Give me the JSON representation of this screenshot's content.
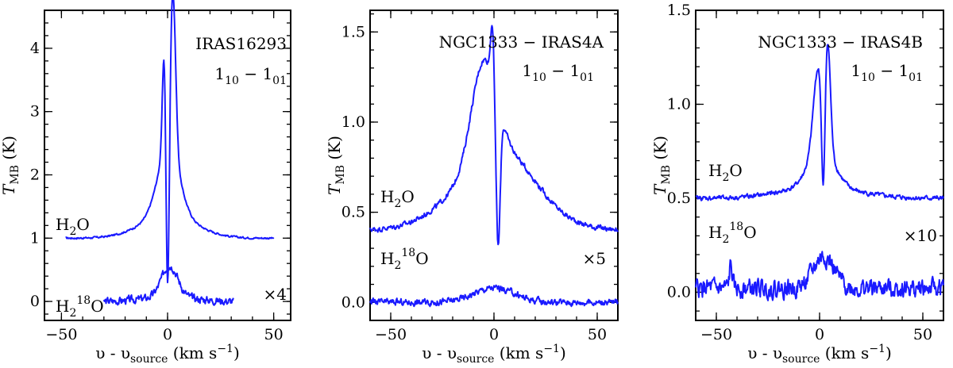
{
  "chart_data": [
    {
      "type": "line",
      "title": "IRAS16293",
      "transition": "1₁₀ − 1₀₁",
      "xlabel": "υ - υsource (km s⁻¹)",
      "ylabel": "TMB (K)",
      "xlim": [
        -58,
        58
      ],
      "ylim": [
        -0.3,
        4.6
      ],
      "xticks": [
        -50,
        0,
        50
      ],
      "yticks": [
        0,
        1,
        2,
        3,
        4
      ],
      "xtick_labels": [
        "−50",
        "0",
        "50"
      ],
      "ytick_labels": [
        "0",
        "1",
        "2",
        "3",
        "4"
      ],
      "scale_label": "×4",
      "series": [
        {
          "name": "H₂O",
          "baseline": 1.0,
          "xrange": [
            -48,
            50
          ],
          "noise": 0.012,
          "features": [
            {
              "x": -1.5,
              "amp": 1.8,
              "w": 0.9
            },
            {
              "x": 2.5,
              "amp": 2.55,
              "w": 1.3
            },
            {
              "x": 0.5,
              "amp": 1.1,
              "w": 5.0
            },
            {
              "x": 0.5,
              "amp": 0.35,
              "w": 13.0
            },
            {
              "x": 0.0,
              "amp": -3.0,
              "w": 0.8
            }
          ],
          "absorption_floor": 0.0
        },
        {
          "name": "H₂¹⁸O",
          "baseline": 0.0,
          "xrange": [
            -30,
            31
          ],
          "noise": 0.05,
          "features": [
            {
              "x": 1.0,
              "amp": 0.5,
              "w": 3.8
            },
            {
              "x": 1.0,
              "amp": 0.07,
              "w": 12.0
            }
          ]
        }
      ]
    },
    {
      "type": "line",
      "title": "NGC1333 − IRAS4A",
      "transition": "1₁₀ − 1₀₁",
      "xlabel": "υ - υsource (km s⁻¹)",
      "ylabel": "TMB (K)",
      "xlim": [
        -60,
        60
      ],
      "ylim": [
        -0.1,
        1.62
      ],
      "xticks": [
        -50,
        0,
        50
      ],
      "yticks": [
        0.0,
        0.5,
        1.0,
        1.5
      ],
      "xtick_labels": [
        "−50",
        "0",
        "50"
      ],
      "ytick_labels": [
        "0.0",
        "0.5",
        "1.0",
        "1.5"
      ],
      "scale_label": "×5",
      "series": [
        {
          "name": "H₂O",
          "baseline": 0.4,
          "xrange": [
            -60,
            60
          ],
          "noise": 0.012,
          "features": [
            {
              "x": -5.0,
              "amp": 0.55,
              "w": 6.0
            },
            {
              "x": 0.0,
              "amp": 0.35,
              "w": 20.0
            },
            {
              "x": -0.8,
              "amp": 0.3,
              "w": 0.8
            },
            {
              "x": 8.0,
              "amp": 0.1,
              "w": 12.0
            },
            {
              "x": 2.0,
              "amp": -0.8,
              "w": 1.0
            }
          ]
        },
        {
          "name": "H₂¹⁸O",
          "baseline": 0.0,
          "xrange": [
            -60,
            60
          ],
          "noise": 0.015,
          "features": [
            {
              "x": 0.0,
              "amp": 0.08,
              "w": 10.0
            }
          ]
        }
      ]
    },
    {
      "type": "line",
      "title": "NGC1333 − IRAS4B",
      "transition": "1₁₀ − 1₀₁",
      "xlabel": "υ - υsource (km s⁻¹)",
      "ylabel": "TMB (K)",
      "xlim": [
        -60,
        60
      ],
      "ylim": [
        -0.15,
        1.5
      ],
      "xticks": [
        -50,
        0,
        50
      ],
      "yticks": [
        0.0,
        0.5,
        1.0,
        1.5
      ],
      "xtick_labels": [
        "−50",
        "0",
        "50"
      ],
      "ytick_labels": [
        "0.0",
        "0.5",
        "1.0",
        "1.5"
      ],
      "scale_label": "×10",
      "series": [
        {
          "name": "H₂O",
          "baseline": 0.5,
          "xrange": [
            -60,
            60
          ],
          "noise": 0.01,
          "features": [
            {
              "x": -0.8,
              "amp": 0.42,
              "w": 2.2
            },
            {
              "x": 4.0,
              "amp": 0.55,
              "w": 1.3
            },
            {
              "x": 1.0,
              "amp": 0.22,
              "w": 6.0
            },
            {
              "x": 0.0,
              "amp": 0.06,
              "w": 18.0
            },
            {
              "x": 1.8,
              "amp": -0.55,
              "w": 0.8
            }
          ]
        },
        {
          "name": "H₂¹⁸O",
          "baseline": 0.02,
          "xrange": [
            -60,
            60
          ],
          "noise": 0.04,
          "features": [
            {
              "x": 2.0,
              "amp": 0.17,
              "w": 5.0
            },
            {
              "x": -43.0,
              "amp": 0.12,
              "w": 0.7
            }
          ]
        }
      ]
    }
  ]
}
